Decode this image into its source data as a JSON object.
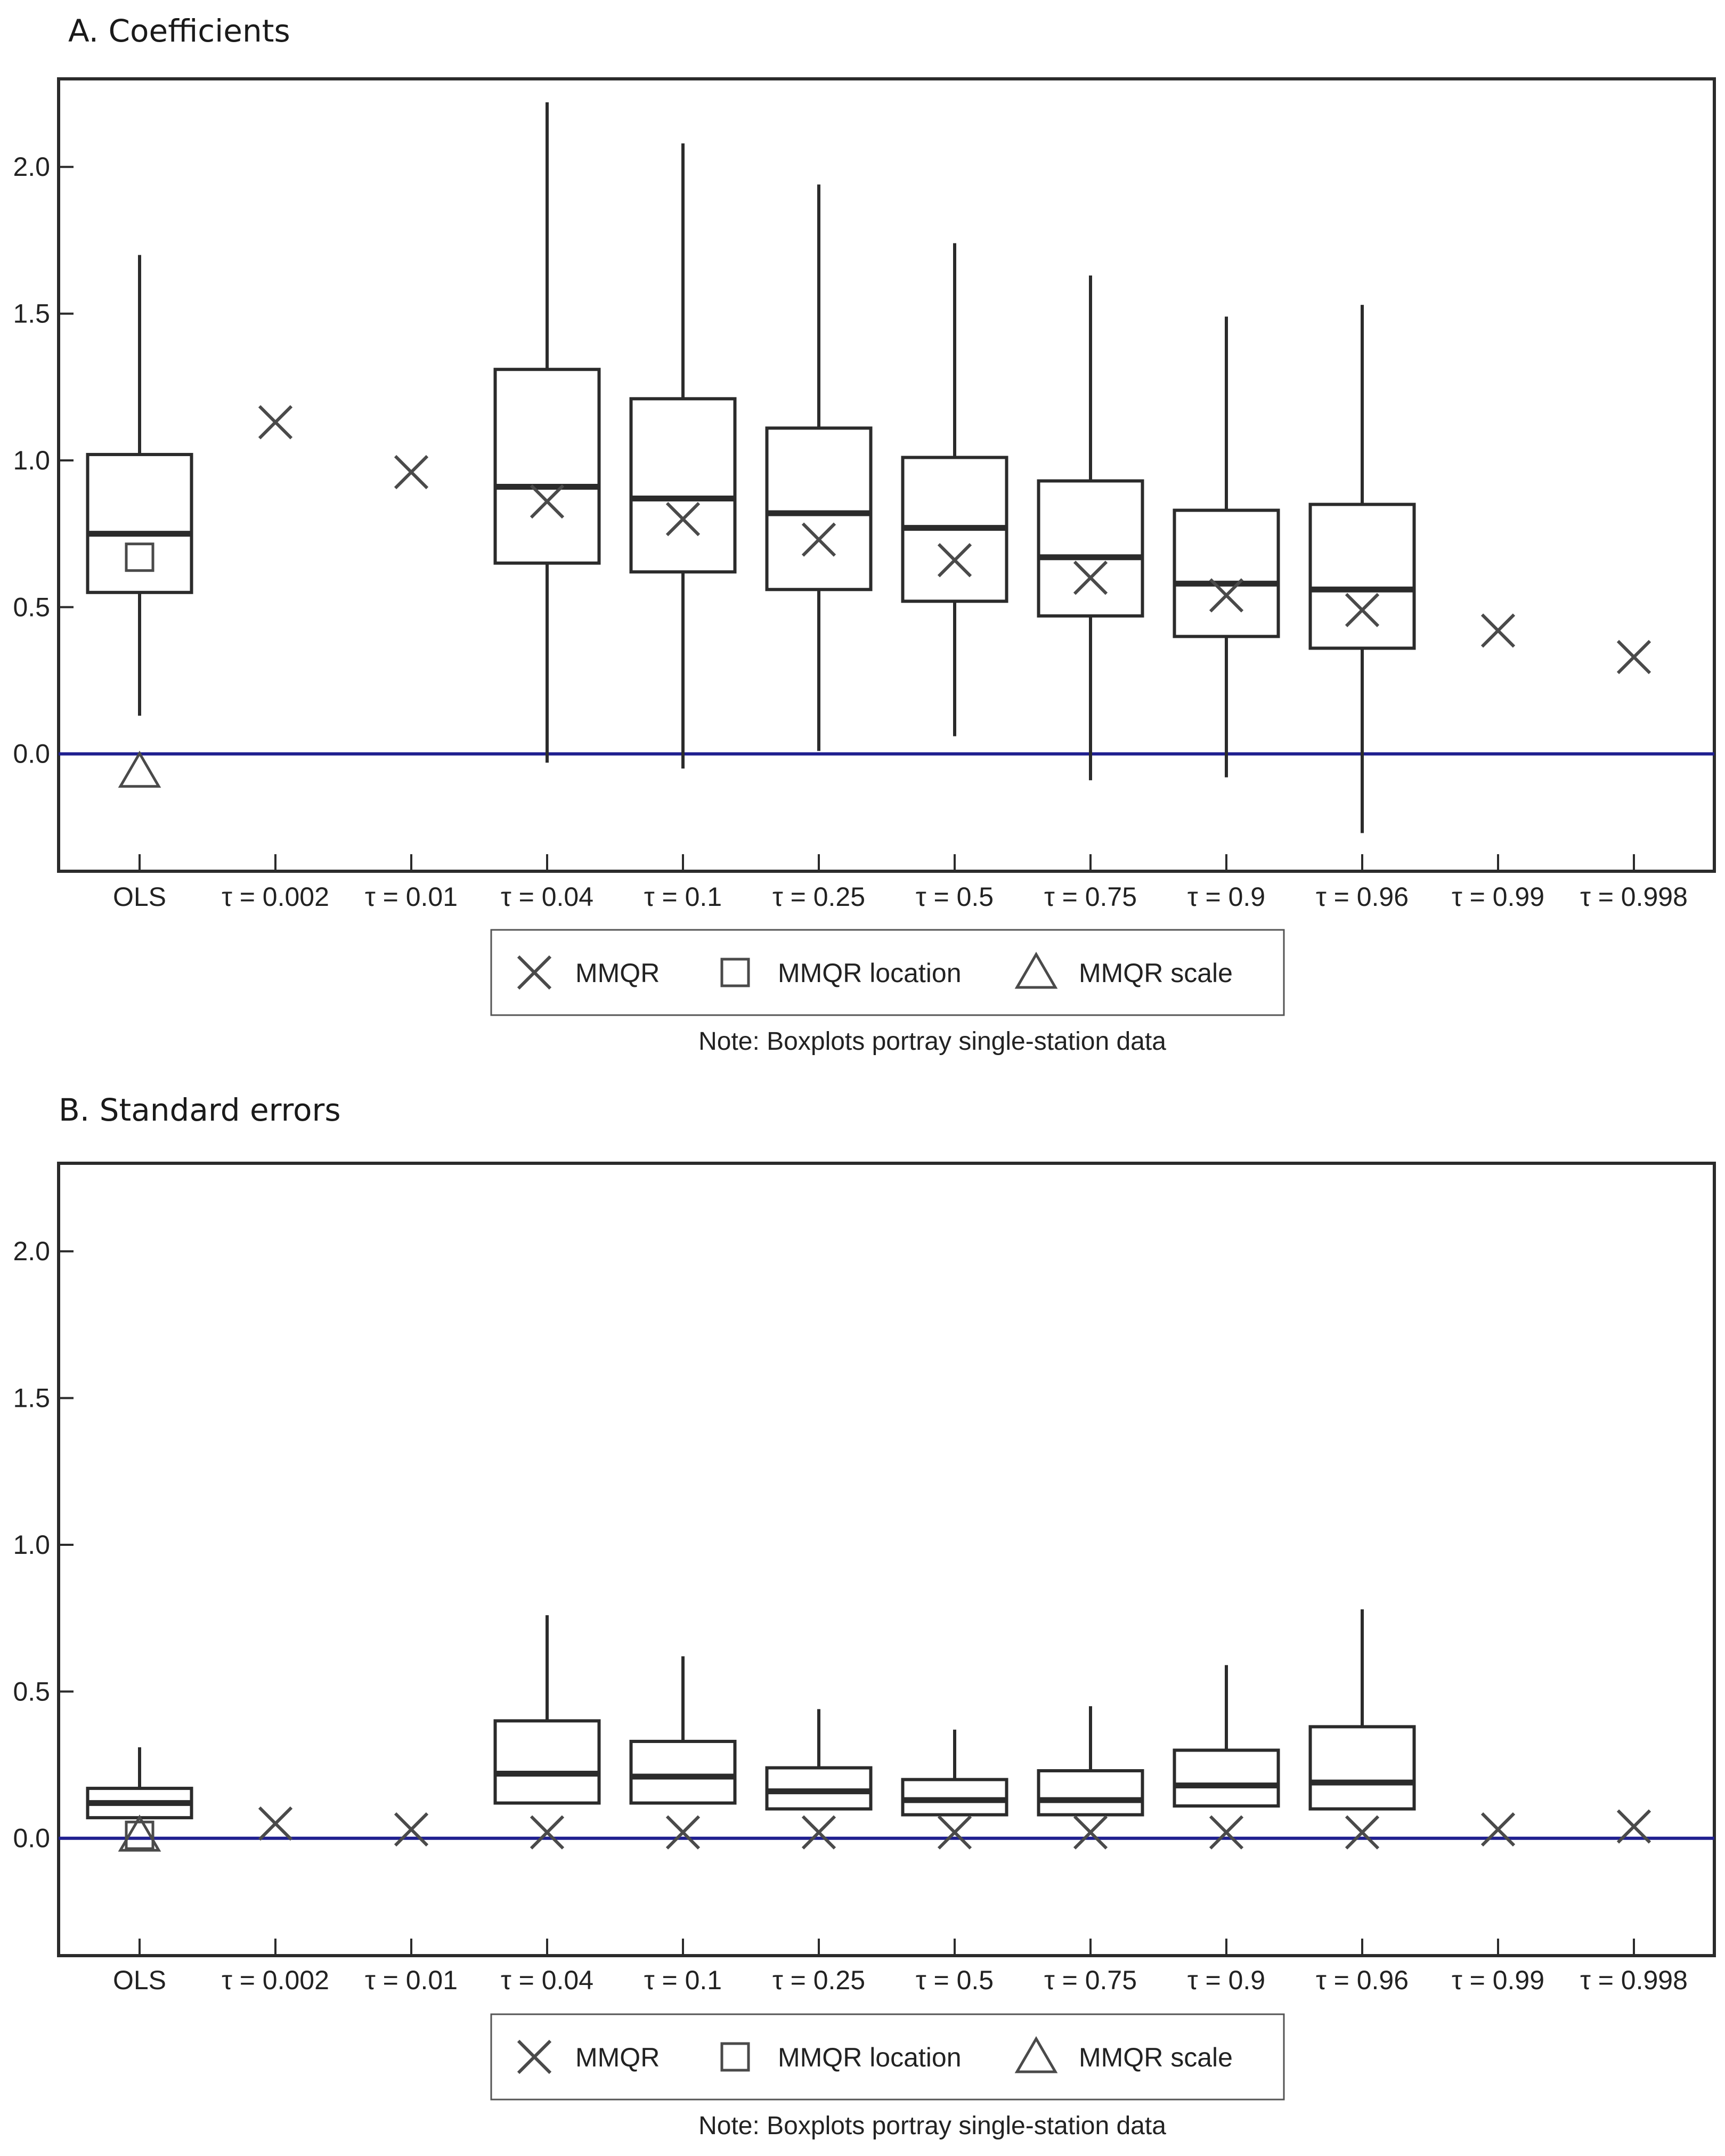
{
  "chart_data": [
    {
      "type": "boxplot",
      "title": "A. Coefficients",
      "categories": [
        "OLS",
        "τ = 0.002",
        "τ = 0.01",
        "τ = 0.04",
        "τ = 0.1",
        "τ = 0.25",
        "τ = 0.5",
        "τ = 0.75",
        "τ = 0.9",
        "τ = 0.96",
        "τ = 0.99",
        "τ = 0.998"
      ],
      "ylim": [
        -0.4,
        2.3
      ],
      "yticks": [
        "0.0",
        "0.5",
        "1.0",
        "1.5",
        "2.0"
      ],
      "ytick_values": [
        0.0,
        0.5,
        1.0,
        1.5,
        2.0
      ],
      "reference_line": {
        "value": 0.0,
        "color": "#1f1f8f"
      },
      "boxes": [
        {
          "category": "OLS",
          "whisker_low": 0.13,
          "q1": 0.55,
          "median": 0.75,
          "q3": 1.02,
          "whisker_high": 1.7
        },
        {
          "category": "τ = 0.04",
          "whisker_low": -0.03,
          "q1": 0.65,
          "median": 0.91,
          "q3": 1.31,
          "whisker_high": 2.22
        },
        {
          "category": "τ = 0.1",
          "whisker_low": -0.05,
          "q1": 0.62,
          "median": 0.87,
          "q3": 1.21,
          "whisker_high": 2.08
        },
        {
          "category": "τ = 0.25",
          "whisker_low": 0.01,
          "q1": 0.56,
          "median": 0.82,
          "q3": 1.11,
          "whisker_high": 1.94
        },
        {
          "category": "τ = 0.5",
          "whisker_low": 0.06,
          "q1": 0.52,
          "median": 0.77,
          "q3": 1.01,
          "whisker_high": 1.74
        },
        {
          "category": "τ = 0.75",
          "whisker_low": -0.09,
          "q1": 0.47,
          "median": 0.67,
          "q3": 0.93,
          "whisker_high": 1.63
        },
        {
          "category": "τ = 0.9",
          "whisker_low": -0.08,
          "q1": 0.4,
          "median": 0.58,
          "q3": 0.83,
          "whisker_high": 1.49
        },
        {
          "category": "τ = 0.96",
          "whisker_low": -0.27,
          "q1": 0.36,
          "median": 0.56,
          "q3": 0.85,
          "whisker_high": 1.53
        }
      ],
      "markers": [
        {
          "category": "OLS",
          "kind": "square",
          "value": 0.67
        },
        {
          "category": "OLS",
          "kind": "triangle",
          "value": -0.06
        },
        {
          "category": "τ = 0.002",
          "kind": "x",
          "value": 1.13
        },
        {
          "category": "τ = 0.01",
          "kind": "x",
          "value": 0.96
        },
        {
          "category": "τ = 0.04",
          "kind": "x",
          "value": 0.86
        },
        {
          "category": "τ = 0.1",
          "kind": "x",
          "value": 0.8
        },
        {
          "category": "τ = 0.25",
          "kind": "x",
          "value": 0.73
        },
        {
          "category": "τ = 0.5",
          "kind": "x",
          "value": 0.66
        },
        {
          "category": "τ = 0.75",
          "kind": "x",
          "value": 0.6
        },
        {
          "category": "τ = 0.9",
          "kind": "x",
          "value": 0.54
        },
        {
          "category": "τ = 0.96",
          "kind": "x",
          "value": 0.49
        },
        {
          "category": "τ = 0.99",
          "kind": "x",
          "value": 0.42
        },
        {
          "category": "τ = 0.998",
          "kind": "x",
          "value": 0.33
        }
      ],
      "legend": [
        {
          "kind": "x",
          "label": "MMQR"
        },
        {
          "kind": "square",
          "label": "MMQR location"
        },
        {
          "kind": "triangle",
          "label": "MMQR scale"
        }
      ],
      "note": "Note: Boxplots portray single-station data"
    },
    {
      "type": "boxplot",
      "title": "B. Standard errors",
      "categories": [
        "OLS",
        "τ = 0.002",
        "τ = 0.01",
        "τ = 0.04",
        "τ = 0.1",
        "τ = 0.25",
        "τ = 0.5",
        "τ = 0.75",
        "τ = 0.9",
        "τ = 0.96",
        "τ = 0.99",
        "τ = 0.998"
      ],
      "ylim": [
        -0.4,
        2.3
      ],
      "yticks": [
        "0.0",
        "0.5",
        "1.0",
        "1.5",
        "2.0"
      ],
      "ytick_values": [
        0.0,
        0.5,
        1.0,
        1.5,
        2.0
      ],
      "reference_line": {
        "value": 0.0,
        "color": "#1f1f8f"
      },
      "boxes": [
        {
          "category": "OLS",
          "whisker_low": 0.07,
          "q1": 0.07,
          "median": 0.12,
          "q3": 0.17,
          "whisker_high": 0.31
        },
        {
          "category": "τ = 0.04",
          "whisker_low": 0.12,
          "q1": 0.12,
          "median": 0.22,
          "q3": 0.4,
          "whisker_high": 0.76
        },
        {
          "category": "τ = 0.1",
          "whisker_low": 0.12,
          "q1": 0.12,
          "median": 0.21,
          "q3": 0.33,
          "whisker_high": 0.62
        },
        {
          "category": "τ = 0.25",
          "whisker_low": 0.1,
          "q1": 0.1,
          "median": 0.16,
          "q3": 0.24,
          "whisker_high": 0.44
        },
        {
          "category": "τ = 0.5",
          "whisker_low": 0.08,
          "q1": 0.08,
          "median": 0.13,
          "q3": 0.2,
          "whisker_high": 0.37
        },
        {
          "category": "τ = 0.75",
          "whisker_low": 0.08,
          "q1": 0.08,
          "median": 0.13,
          "q3": 0.23,
          "whisker_high": 0.45
        },
        {
          "category": "τ = 0.9",
          "whisker_low": 0.11,
          "q1": 0.11,
          "median": 0.18,
          "q3": 0.3,
          "whisker_high": 0.59
        },
        {
          "category": "τ = 0.96",
          "whisker_low": 0.1,
          "q1": 0.1,
          "median": 0.19,
          "q3": 0.38,
          "whisker_high": 0.78
        }
      ],
      "markers": [
        {
          "category": "OLS",
          "kind": "square",
          "value": 0.01
        },
        {
          "category": "OLS",
          "kind": "triangle",
          "value": 0.01
        },
        {
          "category": "τ = 0.002",
          "kind": "x",
          "value": 0.05
        },
        {
          "category": "τ = 0.01",
          "kind": "x",
          "value": 0.03
        },
        {
          "category": "τ = 0.04",
          "kind": "x",
          "value": 0.02
        },
        {
          "category": "τ = 0.1",
          "kind": "x",
          "value": 0.02
        },
        {
          "category": "τ = 0.25",
          "kind": "x",
          "value": 0.02
        },
        {
          "category": "τ = 0.5",
          "kind": "x",
          "value": 0.02
        },
        {
          "category": "τ = 0.75",
          "kind": "x",
          "value": 0.02
        },
        {
          "category": "τ = 0.9",
          "kind": "x",
          "value": 0.02
        },
        {
          "category": "τ = 0.96",
          "kind": "x",
          "value": 0.02
        },
        {
          "category": "τ = 0.99",
          "kind": "x",
          "value": 0.03
        },
        {
          "category": "τ = 0.998",
          "kind": "x",
          "value": 0.04
        }
      ],
      "legend": [
        {
          "kind": "x",
          "label": "MMQR"
        },
        {
          "kind": "square",
          "label": "MMQR location"
        },
        {
          "kind": "triangle",
          "label": "MMQR scale"
        }
      ],
      "note": "Note: Boxplots portray single-station data"
    }
  ]
}
